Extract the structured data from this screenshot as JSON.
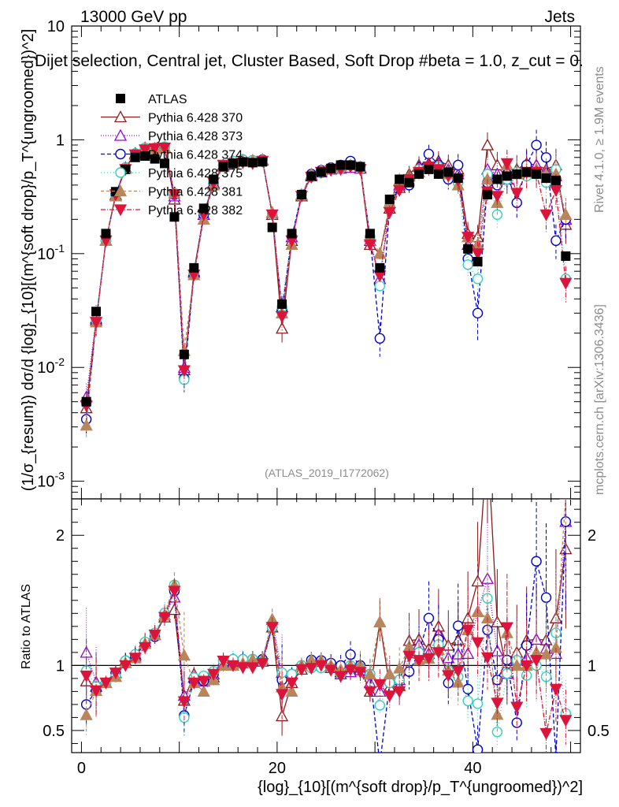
{
  "chart_data": {
    "type": "scatter",
    "header_left": "13000 GeV pp",
    "header_right": "Jets",
    "title_line": "Dijet selection, Central jet, Cluster Based, Soft Drop #beta = 1.0, z_cut = 0.",
    "analysis_tag": "(ATLAS_2019_I1772062)",
    "side_label_top": "Rivet 4.1.0, ≥ 1.9M events",
    "side_label_bottom": "mcplots.cern.ch [arXiv:1306.3436]",
    "ylabel": "(1/σ_{resum}) dσ/d {log}_{10}[(m^{soft drop}/p_T^{ungroomed})^2]",
    "ratio_ylabel": "Ratio to ATLAS",
    "xlabel": "{log}_{10}[(m^{soft drop}/p_T^{ungroomed})^2]",
    "xlim": [
      -1,
      51
    ],
    "ylim": [
      0.0007,
      10
    ],
    "ratio_ylim": [
      0.33,
      2.28
    ],
    "x_ticks": [
      "0",
      "20",
      "40"
    ],
    "y_ticks": [
      "10^{-3}",
      "10^{-2}",
      "10^{-1}",
      "1",
      "10"
    ],
    "ratio_ticks": [
      "0.5",
      "1",
      "2"
    ],
    "x": [
      0.5,
      1.5,
      2.5,
      3.5,
      4.5,
      5.5,
      6.5,
      7.5,
      8.5,
      9.5,
      10.5,
      11.5,
      12.5,
      13.5,
      14.5,
      15.5,
      16.5,
      17.5,
      18.5,
      19.5,
      20.5,
      21.5,
      22.5,
      23.5,
      24.5,
      25.5,
      26.5,
      27.5,
      28.5,
      29.5,
      30.5,
      31.5,
      32.5,
      33.5,
      34.5,
      35.5,
      36.5,
      37.5,
      38.5,
      39.5,
      40.5,
      41.5,
      42.5,
      43.5,
      44.5,
      45.5,
      46.5,
      47.5,
      48.5,
      49.5
    ],
    "series": [
      {
        "name": "ATLAS",
        "color": "#000000",
        "marker": "square",
        "dash": "",
        "values": [
          0.005,
          0.031,
          0.15,
          0.35,
          0.55,
          0.7,
          0.72,
          0.68,
          0.62,
          0.21,
          0.013,
          0.075,
          0.25,
          0.45,
          0.58,
          0.62,
          0.64,
          0.63,
          0.64,
          0.17,
          0.036,
          0.15,
          0.33,
          0.48,
          0.52,
          0.56,
          0.6,
          0.6,
          0.58,
          0.15,
          0.075,
          0.3,
          0.45,
          0.42,
          0.5,
          0.55,
          0.5,
          0.52,
          0.46,
          0.11,
          0.085,
          0.33,
          0.45,
          0.48,
          0.5,
          0.52,
          0.5,
          0.46,
          0.44,
          0.095
        ]
      },
      {
        "name": "Pythia 6.428 370",
        "color": "#8b1a1a",
        "marker": "tri-up-open",
        "dash": "",
        "values": [
          0.0044,
          0.026,
          0.13,
          0.33,
          0.57,
          0.76,
          0.85,
          0.84,
          0.85,
          0.3,
          0.0095,
          0.07,
          0.22,
          0.41,
          0.59,
          0.64,
          0.66,
          0.66,
          0.67,
          0.22,
          0.022,
          0.13,
          0.32,
          0.48,
          0.53,
          0.56,
          0.57,
          0.58,
          0.57,
          0.12,
          0.1,
          0.25,
          0.38,
          0.5,
          0.6,
          0.62,
          0.65,
          0.6,
          0.55,
          0.15,
          0.14,
          0.9,
          0.6,
          0.45,
          0.55,
          0.62,
          0.6,
          0.55,
          0.6,
          0.18
        ]
      },
      {
        "name": "Pythia 6.428 373",
        "color": "#9400d3",
        "marker": "tri-up-open",
        "dash": "1,2",
        "values": [
          0.0055,
          0.027,
          0.13,
          0.32,
          0.56,
          0.75,
          0.84,
          0.84,
          0.86,
          0.32,
          0.01,
          0.068,
          0.22,
          0.42,
          0.6,
          0.63,
          0.66,
          0.65,
          0.66,
          0.23,
          0.034,
          0.14,
          0.33,
          0.49,
          0.52,
          0.55,
          0.56,
          0.57,
          0.56,
          0.13,
          0.06,
          0.28,
          0.4,
          0.48,
          0.58,
          0.6,
          0.62,
          0.55,
          0.5,
          0.12,
          0.12,
          0.55,
          0.5,
          0.45,
          0.52,
          0.55,
          0.6,
          0.52,
          0.48,
          0.2
        ]
      },
      {
        "name": "Pythia 6.428 374",
        "color": "#0000cd",
        "marker": "circle-open",
        "dash": "5,3",
        "values": [
          0.0035,
          0.025,
          0.13,
          0.33,
          0.57,
          0.75,
          0.84,
          0.83,
          0.86,
          0.33,
          0.008,
          0.066,
          0.22,
          0.42,
          0.6,
          0.64,
          0.67,
          0.66,
          0.67,
          0.22,
          0.032,
          0.14,
          0.33,
          0.5,
          0.54,
          0.57,
          0.6,
          0.65,
          0.58,
          0.14,
          0.018,
          0.26,
          0.4,
          0.4,
          0.55,
          0.75,
          0.6,
          0.45,
          0.6,
          0.09,
          0.03,
          0.42,
          0.4,
          0.5,
          0.28,
          0.6,
          0.9,
          0.7,
          0.13,
          0.2
        ]
      },
      {
        "name": "Pythia 6.428 375",
        "color": "#2fd1c0",
        "marker": "circle-open",
        "dash": "1,3",
        "values": [
          0.0048,
          0.026,
          0.13,
          0.32,
          0.57,
          0.76,
          0.85,
          0.85,
          0.87,
          0.34,
          0.0078,
          0.068,
          0.23,
          0.43,
          0.6,
          0.65,
          0.67,
          0.66,
          0.66,
          0.22,
          0.034,
          0.14,
          0.33,
          0.47,
          0.51,
          0.55,
          0.56,
          0.6,
          0.57,
          0.14,
          0.052,
          0.26,
          0.4,
          0.46,
          0.55,
          0.58,
          0.58,
          0.5,
          0.42,
          0.08,
          0.06,
          0.5,
          0.22,
          0.45,
          0.52,
          0.48,
          0.5,
          0.42,
          0.55,
          0.06
        ]
      },
      {
        "name": "Pythia 6.428 381",
        "color": "#b8865a",
        "marker": "tri-up-filled",
        "dash": "4,3",
        "values": [
          0.0031,
          0.025,
          0.13,
          0.32,
          0.56,
          0.74,
          0.84,
          0.84,
          0.86,
          0.34,
          0.014,
          0.065,
          0.2,
          0.4,
          0.58,
          0.62,
          0.65,
          0.66,
          0.67,
          0.23,
          0.03,
          0.12,
          0.33,
          0.5,
          0.54,
          0.56,
          0.58,
          0.6,
          0.58,
          0.14,
          0.1,
          0.28,
          0.44,
          0.48,
          0.52,
          0.58,
          0.56,
          0.5,
          0.4,
          0.14,
          0.12,
          0.45,
          0.28,
          0.6,
          0.5,
          0.52,
          0.55,
          0.5,
          0.5,
          0.22
        ]
      },
      {
        "name": "Pythia 6.428 382",
        "color": "#dc143c",
        "marker": "tri-down-filled",
        "dash": "6,2,1,2",
        "values": [
          0.0046,
          0.025,
          0.13,
          0.33,
          0.55,
          0.74,
          0.82,
          0.84,
          0.85,
          0.33,
          0.0094,
          0.065,
          0.22,
          0.42,
          0.6,
          0.62,
          0.63,
          0.62,
          0.65,
          0.22,
          0.028,
          0.13,
          0.32,
          0.47,
          0.52,
          0.54,
          0.55,
          0.58,
          0.55,
          0.12,
          0.064,
          0.23,
          0.36,
          0.45,
          0.52,
          0.58,
          0.55,
          0.48,
          0.44,
          0.14,
          0.1,
          0.35,
          0.32,
          0.62,
          0.34,
          0.52,
          0.52,
          0.22,
          0.36,
          0.055
        ]
      }
    ]
  }
}
